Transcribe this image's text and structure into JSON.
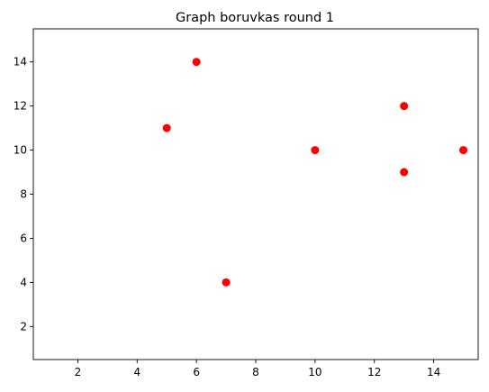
{
  "chart_data": {
    "type": "scatter",
    "title": "Graph boruvkas round 1",
    "xlabel": "",
    "ylabel": "",
    "xlim": [
      0.5,
      15.5
    ],
    "ylim": [
      0.5,
      15.5
    ],
    "xticks": [
      2,
      4,
      6,
      8,
      10,
      12,
      14
    ],
    "yticks": [
      2,
      4,
      6,
      8,
      10,
      12,
      14
    ],
    "grid": false,
    "marker_color": "#ff0000",
    "points": [
      {
        "x": 6,
        "y": 14
      },
      {
        "x": 5,
        "y": 11
      },
      {
        "x": 13,
        "y": 12
      },
      {
        "x": 10,
        "y": 10
      },
      {
        "x": 15,
        "y": 10
      },
      {
        "x": 13,
        "y": 9
      },
      {
        "x": 7,
        "y": 4
      }
    ]
  }
}
